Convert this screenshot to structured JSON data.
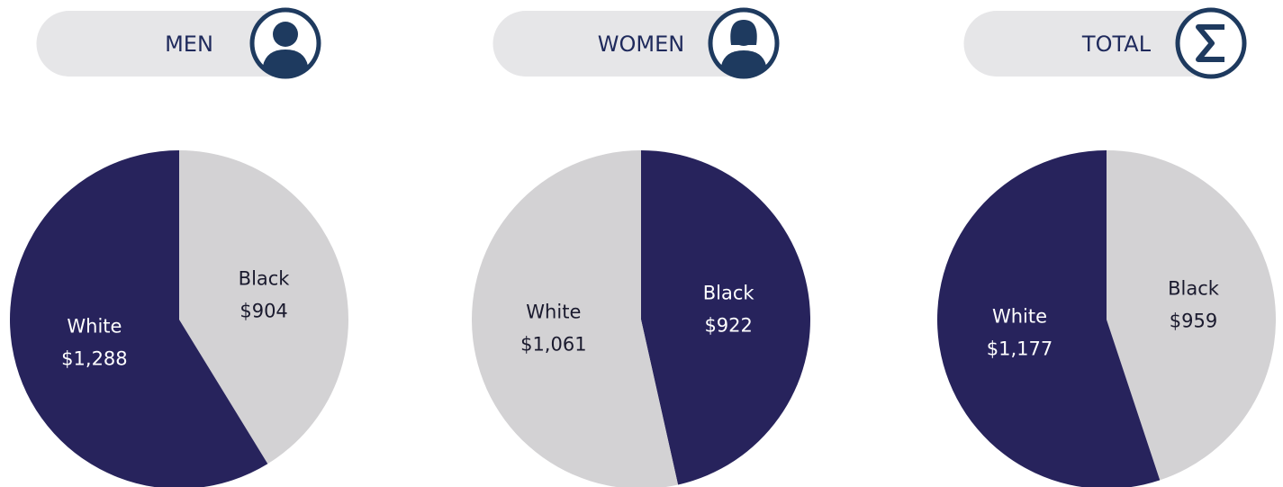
{
  "chart_data": [
    {
      "type": "pie",
      "title": "MEN",
      "categories": [
        "Black",
        "White"
      ],
      "values": [
        904,
        1288
      ],
      "value_labels": [
        "$904",
        "$1,288"
      ],
      "colors": [
        "#d3d2d4",
        "#27235c"
      ]
    },
    {
      "type": "pie",
      "title": "WOMEN",
      "categories": [
        "Black",
        "White"
      ],
      "values": [
        922,
        1061
      ],
      "value_labels": [
        "$922",
        "$1,061"
      ],
      "colors": [
        "#27235c",
        "#d3d2d4"
      ]
    },
    {
      "type": "pie",
      "title": "TOTAL",
      "categories": [
        "Black",
        "White"
      ],
      "values": [
        959,
        1177
      ],
      "value_labels": [
        "$959",
        "$1,177"
      ],
      "colors": [
        "#d3d2d4",
        "#27235c"
      ]
    }
  ]
}
